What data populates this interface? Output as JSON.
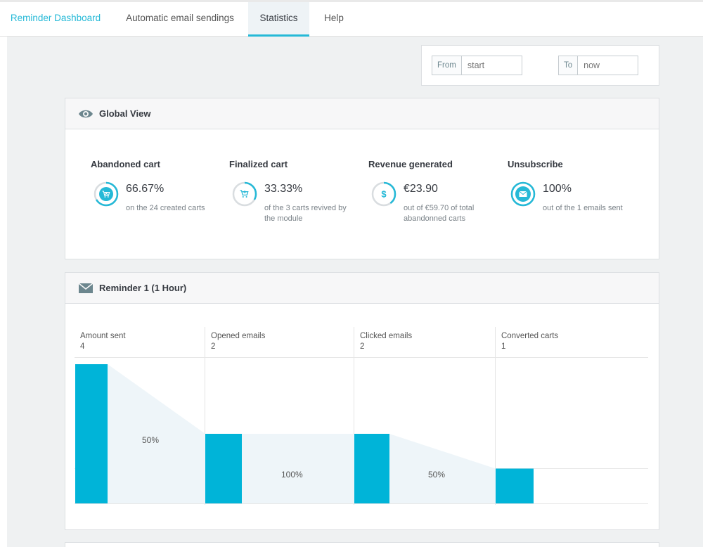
{
  "tabs": [
    {
      "label": "Reminder Dashboard"
    },
    {
      "label": "Automatic email sendings"
    },
    {
      "label": "Statistics"
    },
    {
      "label": "Help"
    }
  ],
  "date_filter": {
    "from_label": "From",
    "from_placeholder": "start",
    "to_label": "To",
    "to_placeholder": "now"
  },
  "global_view": {
    "title": "Global View",
    "icon": "eye-icon",
    "stats": [
      {
        "title": "Abandoned cart",
        "value": "66.67%",
        "desc": "on the 24 created carts",
        "icon": "cart-remove-icon",
        "ring_fraction": 0.6667
      },
      {
        "title": "Finalized cart",
        "value": "33.33%",
        "desc": "of the 3 carts revived by the module",
        "icon": "cart-add-icon",
        "ring_fraction": 0.3333
      },
      {
        "title": "Revenue generated",
        "value": "€23.90",
        "desc": "out of €59.70 of total abandonned carts",
        "icon": "dollar-icon",
        "ring_fraction": 0.4
      },
      {
        "title": "Unsubscribe",
        "value": "100%",
        "desc": "out of the 1 emails sent",
        "icon": "envelope-icon",
        "ring_fraction": 1.0
      }
    ]
  },
  "reminder": {
    "title": "Reminder 1 (1 Hour)",
    "icon": "envelope-icon",
    "funnel": [
      {
        "label": "Amount sent",
        "value": "4"
      },
      {
        "label": "Opened emails",
        "value": "2"
      },
      {
        "label": "Clicked emails",
        "value": "2"
      },
      {
        "label": "Converted carts",
        "value": "1"
      }
    ],
    "conversions": [
      "50%",
      "100%",
      "50%"
    ]
  },
  "chart_data": {
    "type": "bar",
    "categories": [
      "Amount sent",
      "Opened emails",
      "Clicked emails",
      "Converted carts"
    ],
    "values": [
      4,
      2,
      2,
      1
    ],
    "conversion_rates": [
      "50%",
      "100%",
      "50%"
    ],
    "ylim": [
      0,
      4
    ],
    "grid": true
  },
  "colors": {
    "accent": "#25b9d7",
    "bar": "#00b4d8",
    "funnel_fill": "#eef5f9",
    "ring_track": "#d9dde0"
  }
}
